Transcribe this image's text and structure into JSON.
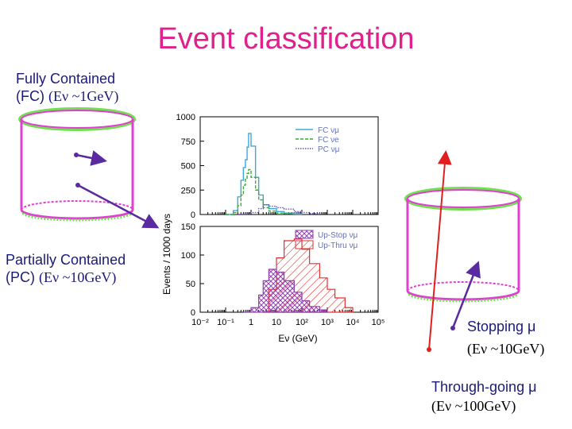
{
  "title": "Event classification",
  "labels": {
    "fc_line1": "Fully Contained",
    "fc_line2": "(FC)",
    "fc_energy": "(Eν ~1GeV)",
    "pc_line1": "Partially Contained",
    "pc_line2": "(PC)",
    "pc_energy": "(Eν ~10GeV)",
    "stop_line1": "Stopping μ",
    "stop_energy": "(Eν ~10GeV)",
    "thru_line1": "Through-going μ",
    "thru_energy": "(Eν ~100GeV)"
  },
  "colors": {
    "title": "#e0208c",
    "detector_magenta": "#e040d0",
    "detector_green": "#70e050",
    "track_purple": "#5a2aa0",
    "track_red": "#e02020",
    "fc_numu": "#40a8d8",
    "fc_nue": "#30b030",
    "pc_numu": "#6050c0",
    "upstop": "#9040b0",
    "upthru": "#e03030"
  },
  "chart_data": [
    {
      "type": "line",
      "ylabel": "Events / 1000 days",
      "ylim": [
        0,
        1000
      ],
      "yticks": [
        "1000",
        "750",
        "500",
        "250",
        "0"
      ],
      "log_x": true,
      "xlim": [
        0.01,
        100000
      ],
      "legend_position": "top-right",
      "series": [
        {
          "name": "FC νμ",
          "style": "solid",
          "x": [
            0.1,
            0.2,
            0.3,
            0.4,
            0.5,
            0.6,
            0.7,
            0.8,
            1.0,
            1.5,
            2.0,
            3.0,
            5.0,
            10,
            20,
            50,
            100
          ],
          "values": [
            0,
            40,
            180,
            350,
            480,
            560,
            690,
            830,
            700,
            380,
            200,
            100,
            60,
            30,
            15,
            5,
            0
          ]
        },
        {
          "name": "FC νe",
          "style": "dashed",
          "x": [
            0.1,
            0.2,
            0.3,
            0.4,
            0.5,
            0.6,
            0.7,
            0.8,
            1.0,
            1.5,
            2.0,
            3.0,
            5.0,
            10,
            20,
            50
          ],
          "values": [
            0,
            20,
            90,
            200,
            300,
            360,
            420,
            460,
            380,
            250,
            150,
            70,
            35,
            15,
            8,
            0
          ]
        },
        {
          "name": "PC νμ",
          "style": "dotted",
          "x": [
            0.3,
            0.5,
            1.0,
            2.0,
            3.0,
            5.0,
            10,
            20,
            50,
            100,
            200,
            500
          ],
          "values": [
            0,
            5,
            20,
            60,
            100,
            85,
            70,
            55,
            30,
            20,
            10,
            0
          ]
        }
      ]
    },
    {
      "type": "area",
      "xlabel": "Eν (GeV)",
      "ylim": [
        0,
        150
      ],
      "yticks": [
        "150",
        "100",
        "50",
        "0"
      ],
      "xticks": [
        "10⁻²",
        "10⁻¹",
        "1",
        "10",
        "10²",
        "10³",
        "10⁴",
        "10⁵"
      ],
      "log_x": true,
      "xlim": [
        0.01,
        100000
      ],
      "legend_position": "top-right",
      "series": [
        {
          "name": "Up-Stop νμ",
          "style": "crosshatch",
          "x": [
            0.5,
            1,
            2,
            3,
            5,
            10,
            20,
            50,
            100,
            200,
            500,
            1000
          ],
          "values": [
            0,
            8,
            30,
            55,
            75,
            70,
            55,
            35,
            20,
            10,
            4,
            0
          ]
        },
        {
          "name": "Up-Thru νμ",
          "style": "hatch",
          "x": [
            3,
            5,
            10,
            20,
            50,
            100,
            200,
            500,
            1000,
            2000,
            5000,
            10000
          ],
          "values": [
            0,
            40,
            95,
            125,
            128,
            110,
            85,
            60,
            40,
            25,
            8,
            0
          ]
        }
      ]
    }
  ]
}
